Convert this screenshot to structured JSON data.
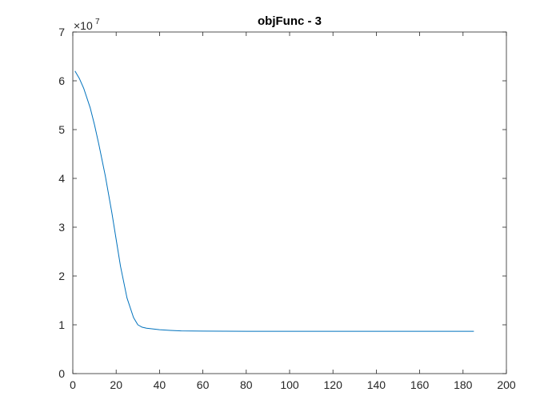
{
  "chart_data": {
    "type": "line",
    "title": "objFunc - 3",
    "xlabel": "",
    "ylabel": "",
    "xlim": [
      0,
      200
    ],
    "ylim": [
      0,
      7
    ],
    "x_ticks": [
      0,
      20,
      40,
      60,
      80,
      100,
      120,
      140,
      160,
      180,
      200
    ],
    "y_ticks": [
      0,
      1,
      2,
      3,
      4,
      5,
      6,
      7
    ],
    "y_exponent_label": "×10",
    "y_exponent_power": "7",
    "grid": false,
    "series": [
      {
        "color": "#0072BD",
        "x": [
          1,
          3,
          5,
          8,
          10,
          12,
          15,
          18,
          20,
          22,
          25,
          28,
          30,
          32,
          34,
          36,
          40,
          45,
          50,
          60,
          70,
          80,
          100,
          120,
          140,
          160,
          185
        ],
        "y": [
          6.2,
          6.05,
          5.85,
          5.45,
          5.1,
          4.7,
          4.05,
          3.3,
          2.75,
          2.2,
          1.55,
          1.15,
          1.0,
          0.95,
          0.93,
          0.92,
          0.9,
          0.885,
          0.875,
          0.87,
          0.868,
          0.867,
          0.866,
          0.866,
          0.866,
          0.866,
          0.866
        ]
      }
    ]
  }
}
